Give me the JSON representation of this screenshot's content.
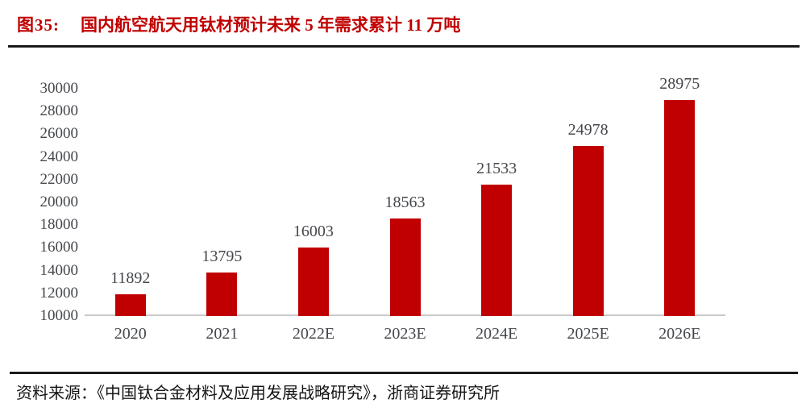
{
  "figure": {
    "title_prefix": "图35:",
    "title_text": "国内航空航天用钛材预计未来 5 年需求累计 11 万吨",
    "source": "资料来源：《中国钛合金材料及应用发展战略研究》，浙商证券研究所"
  },
  "colors": {
    "title_red": "#C00000",
    "bar_red": "#C00000",
    "label_text": "#44474C",
    "axis_line": "#C9C9C9",
    "rule_dark": "#1A1A1A",
    "source_text": "#141414"
  },
  "chart_data": {
    "type": "bar",
    "categories": [
      "2020",
      "2021",
      "2022E",
      "2023E",
      "2024E",
      "2025E",
      "2026E"
    ],
    "values": [
      11892,
      13795,
      16003,
      18563,
      21533,
      24978,
      28975
    ],
    "title": "国内航空航天用钛材预计未来 5 年需求累计 11 万吨",
    "xlabel": "",
    "ylabel": "",
    "ylim": [
      10000,
      30000
    ],
    "ytick_step": 2000,
    "grid": false,
    "legend": "none",
    "data_labels": true
  }
}
